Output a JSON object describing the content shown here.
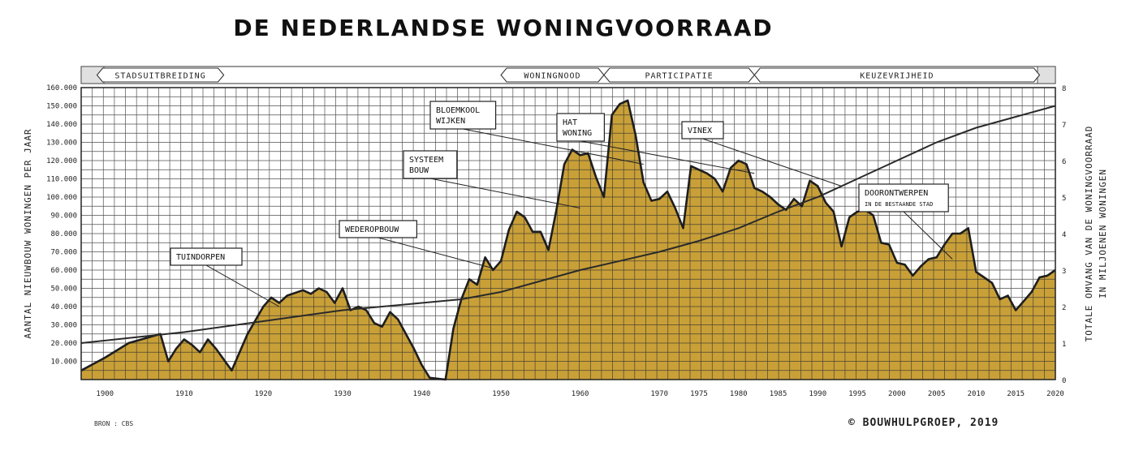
{
  "chart_data": {
    "type": "area",
    "title": "DE NEDERLANDSE WONINGVOORRAAD",
    "source": "BRON : CBS",
    "copyright": "© BOUWHULPGROEP, 2019",
    "x_range": [
      1897,
      2020
    ],
    "x_ticks": [
      "1900",
      "1910",
      "1920",
      "1930",
      "1940",
      "1950",
      "1960",
      "1970",
      "1975",
      "1980",
      "1985",
      "1990",
      "1995",
      "2000",
      "2005",
      "2010",
      "2015",
      "2020"
    ],
    "y_left": {
      "label": "AANTAL NIEUWBOUW WONINGEN PER JAAR",
      "range": [
        0,
        160000
      ],
      "ticks": [
        "10.000",
        "20.000",
        "30.000",
        "40.000",
        "50.000",
        "60.000",
        "70.000",
        "80.000",
        "90.000",
        "100.000",
        "110.000",
        "120.000",
        "130.000",
        "140.000",
        "150.000",
        "160.000"
      ]
    },
    "y_right": {
      "label_line1": "TOTALE OMVANG VAN DE WONINGVOORRAAD",
      "label_line2": "IN MILJOENEN WONINGEN",
      "range": [
        0,
        8
      ],
      "ticks": [
        "0",
        "1",
        "2",
        "3",
        "4",
        "5",
        "6",
        "7",
        "8"
      ]
    },
    "eras": [
      {
        "label": "STADSUITBREIDING",
        "start": 1899,
        "end": 1915
      },
      {
        "label": "WONINGNOOD",
        "start": 1950,
        "end": 1963
      },
      {
        "label": "PARTICIPATIE",
        "start": 1963,
        "end": 1982
      },
      {
        "label": "KEUZEVRIJHEID",
        "start": 1982,
        "end": 2018
      }
    ],
    "series": [
      {
        "name": "nieuwbouw",
        "color": "#c9a038",
        "x": [
          1897,
          1900,
          1903,
          1907,
          1908,
          1909,
          1910,
          1911,
          1912,
          1913,
          1914,
          1916,
          1918,
          1920,
          1921,
          1922,
          1923,
          1925,
          1926,
          1927,
          1928,
          1929,
          1930,
          1931,
          1932,
          1933,
          1934,
          1935,
          1936,
          1937,
          1938,
          1939,
          1940,
          1941,
          1943,
          1944,
          1945,
          1946,
          1947,
          1948,
          1949,
          1950,
          1951,
          1952,
          1953,
          1954,
          1955,
          1956,
          1957,
          1958,
          1959,
          1960,
          1961,
          1962,
          1963,
          1964,
          1965,
          1966,
          1967,
          1968,
          1969,
          1970,
          1971,
          1972,
          1973,
          1974,
          1975,
          1976,
          1977,
          1978,
          1979,
          1980,
          1981,
          1982,
          1983,
          1984,
          1985,
          1986,
          1987,
          1988,
          1989,
          1990,
          1991,
          1992,
          1993,
          1994,
          1995,
          1996,
          1997,
          1998,
          1999,
          2000,
          2001,
          2002,
          2003,
          2004,
          2005,
          2006,
          2007,
          2008,
          2009,
          2010,
          2011,
          2012,
          2013,
          2014,
          2015,
          2016,
          2017,
          2018,
          2019,
          2020
        ],
        "values": [
          5000,
          12000,
          20000,
          25000,
          10000,
          17000,
          22000,
          19000,
          15000,
          22000,
          17000,
          5000,
          25000,
          40000,
          45000,
          42000,
          46000,
          49000,
          47000,
          50000,
          48000,
          42000,
          50000,
          38000,
          40000,
          38000,
          31000,
          29000,
          37000,
          33000,
          25000,
          17000,
          8000,
          1000,
          0,
          28000,
          44000,
          55000,
          52000,
          67000,
          60000,
          65000,
          82000,
          92000,
          89000,
          81000,
          81000,
          71000,
          93000,
          118000,
          126000,
          123000,
          124000,
          111000,
          100000,
          145000,
          151000,
          153000,
          134000,
          108000,
          98000,
          99000,
          103000,
          94000,
          83000,
          117000,
          115000,
          113000,
          110000,
          103000,
          116000,
          120000,
          118000,
          105000,
          103000,
          100000,
          96000,
          93000,
          99000,
          95000,
          109000,
          106000,
          97000,
          92000,
          73000,
          89000,
          92000,
          93000,
          90000,
          75000,
          74000,
          64000,
          63000,
          57000,
          62000,
          66000,
          67000,
          74000,
          80000,
          80000,
          83000,
          59000,
          56000,
          53000,
          44000,
          46000,
          38000,
          43000,
          48000,
          56000,
          57000,
          60000
        ],
        "values_note_plot": true
      },
      {
        "name": "voorraad",
        "color": "#2a2a2a",
        "x": [
          1897,
          1910,
          1920,
          1930,
          1940,
          1945,
          1950,
          1955,
          1960,
          1965,
          1970,
          1975,
          1980,
          1985,
          1990,
          1995,
          2000,
          2005,
          2010,
          2015,
          2020
        ],
        "values": [
          1.0,
          1.3,
          1.6,
          1.9,
          2.1,
          2.2,
          2.4,
          2.7,
          3.0,
          3.25,
          3.5,
          3.8,
          4.15,
          4.6,
          5.0,
          5.5,
          6.0,
          6.5,
          6.9,
          7.2,
          7.5
        ]
      }
    ],
    "annotations": [
      {
        "id": "tuindorpen",
        "lines": [
          "TUINDORPEN"
        ],
        "x": 1922,
        "y": 40000
      },
      {
        "id": "wederopbouw",
        "lines": [
          "WEDEROPBOUW"
        ],
        "x": 1949,
        "y": 61000
      },
      {
        "id": "systeembouw",
        "lines": [
          "SYSTEEM",
          "BOUW"
        ],
        "x": 1960,
        "y": 94000
      },
      {
        "id": "bloemkool",
        "lines": [
          "BLOEMKOOL",
          "WIJKEN"
        ],
        "x": 1968,
        "y": 118000
      },
      {
        "id": "hatwoning",
        "lines": [
          "HAT",
          "WONING"
        ],
        "x": 1982,
        "y": 113000
      },
      {
        "id": "vinex",
        "lines": [
          "VINEX"
        ],
        "x": 1993,
        "y": 106000
      },
      {
        "id": "doorontwerpen",
        "lines": [
          "DOORONTWERPEN",
          "IN DE BESTAANDE STAD"
        ],
        "x": 2007,
        "y": 66000
      }
    ]
  }
}
